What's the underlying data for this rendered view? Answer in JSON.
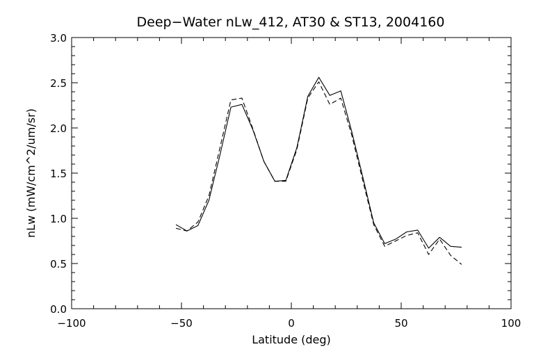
{
  "chart_data": {
    "type": "line",
    "title": "Deep−Water nLw_412, AT30 & ST13, 2004160",
    "xlabel": "Latitude (deg)",
    "ylabel": "nLw (mW/cm^2/um/sr)",
    "xlim": [
      -100,
      100
    ],
    "ylim": [
      0.0,
      3.0
    ],
    "xticks": [
      -100,
      -50,
      0,
      50,
      100
    ],
    "xtick_labels": [
      "−100",
      "−50",
      "0",
      "50",
      "100"
    ],
    "yticks": [
      0.0,
      0.5,
      1.0,
      1.5,
      2.0,
      2.5,
      3.0
    ],
    "ytick_labels": [
      "0.0",
      "0.5",
      "1.0",
      "1.5",
      "2.0",
      "2.5",
      "3.0"
    ],
    "grid": false,
    "legend": "none",
    "series": [
      {
        "style": "solid",
        "color": "#000000",
        "points": [
          [
            -52.5,
            0.93
          ],
          [
            -47.5,
            0.86
          ],
          [
            -42.5,
            0.92
          ],
          [
            -37.5,
            1.2
          ],
          [
            -32.5,
            1.7
          ],
          [
            -27.5,
            2.23
          ],
          [
            -22.5,
            2.26
          ],
          [
            -17.5,
            1.98
          ],
          [
            -12.5,
            1.63
          ],
          [
            -7.5,
            1.41
          ],
          [
            -2.5,
            1.42
          ],
          [
            2.5,
            1.78
          ],
          [
            7.5,
            2.35
          ],
          [
            12.5,
            2.56
          ],
          [
            17.5,
            2.36
          ],
          [
            22.5,
            2.41
          ],
          [
            27.5,
            1.96
          ],
          [
            32.5,
            1.46
          ],
          [
            37.5,
            0.95
          ],
          [
            42.5,
            0.72
          ],
          [
            47.5,
            0.77
          ],
          [
            52.5,
            0.85
          ],
          [
            57.5,
            0.87
          ],
          [
            62.5,
            0.67
          ],
          [
            67.5,
            0.79
          ],
          [
            72.5,
            0.69
          ],
          [
            77.5,
            0.68
          ]
        ]
      },
      {
        "style": "dashed",
        "color": "#000000",
        "points": [
          [
            -52.5,
            0.89
          ],
          [
            -47.5,
            0.86
          ],
          [
            -42.5,
            0.96
          ],
          [
            -37.5,
            1.25
          ],
          [
            -32.5,
            1.78
          ],
          [
            -27.5,
            2.31
          ],
          [
            -22.5,
            2.33
          ],
          [
            -17.5,
            1.99
          ],
          [
            -12.5,
            1.63
          ],
          [
            -7.5,
            1.41
          ],
          [
            -2.5,
            1.41
          ],
          [
            2.5,
            1.76
          ],
          [
            7.5,
            2.33
          ],
          [
            12.5,
            2.51
          ],
          [
            17.5,
            2.26
          ],
          [
            22.5,
            2.33
          ],
          [
            27.5,
            1.92
          ],
          [
            32.5,
            1.42
          ],
          [
            37.5,
            0.93
          ],
          [
            42.5,
            0.69
          ],
          [
            47.5,
            0.75
          ],
          [
            52.5,
            0.81
          ],
          [
            57.5,
            0.84
          ],
          [
            62.5,
            0.6
          ],
          [
            67.5,
            0.77
          ],
          [
            72.5,
            0.59
          ],
          [
            77.5,
            0.49
          ]
        ]
      }
    ]
  }
}
